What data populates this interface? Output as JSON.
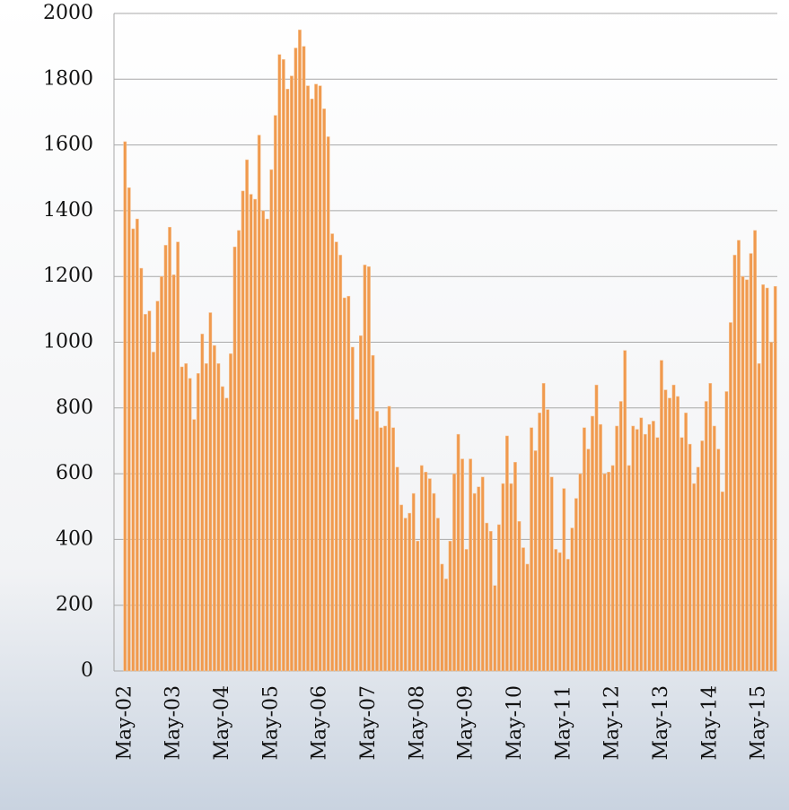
{
  "chart_data": {
    "type": "bar",
    "categories": [
      "May-02",
      null,
      null,
      null,
      null,
      null,
      null,
      null,
      null,
      null,
      null,
      null,
      "May-03",
      null,
      null,
      null,
      null,
      null,
      null,
      null,
      null,
      null,
      null,
      null,
      "May-04",
      null,
      null,
      null,
      null,
      null,
      null,
      null,
      null,
      null,
      null,
      null,
      "May-05",
      null,
      null,
      null,
      null,
      null,
      null,
      null,
      null,
      null,
      null,
      null,
      "May-06",
      null,
      null,
      null,
      null,
      null,
      null,
      null,
      null,
      null,
      null,
      null,
      "May-07",
      null,
      null,
      null,
      null,
      null,
      null,
      null,
      null,
      null,
      null,
      null,
      "May-08",
      null,
      null,
      null,
      null,
      null,
      null,
      null,
      null,
      null,
      null,
      null,
      "May-09",
      null,
      null,
      null,
      null,
      null,
      null,
      null,
      null,
      null,
      null,
      null,
      "May-10",
      null,
      null,
      null,
      null,
      null,
      null,
      null,
      null,
      null,
      null,
      null,
      "May-11",
      null,
      null,
      null,
      null,
      null,
      null,
      null,
      null,
      null,
      null,
      null,
      "May-12",
      null,
      null,
      null,
      null,
      null,
      null,
      null,
      null,
      null,
      null,
      null,
      "May-13",
      null,
      null,
      null,
      null,
      null,
      null,
      null,
      null,
      null,
      null,
      null,
      "May-14",
      null,
      null,
      null,
      null,
      null,
      null,
      null,
      null,
      null,
      null,
      null,
      "May-15",
      null,
      null,
      null,
      null
    ],
    "values": [
      1610,
      1470,
      1345,
      1375,
      1225,
      1085,
      1095,
      970,
      1125,
      1200,
      1295,
      1350,
      1205,
      1305,
      925,
      935,
      890,
      765,
      905,
      1025,
      935,
      1090,
      990,
      935,
      865,
      830,
      965,
      1290,
      1340,
      1460,
      1555,
      1450,
      1435,
      1630,
      1400,
      1375,
      1525,
      1690,
      1875,
      1860,
      1770,
      1810,
      1895,
      1950,
      1900,
      1780,
      1740,
      1785,
      1780,
      1710,
      1625,
      1330,
      1305,
      1265,
      1135,
      1140,
      985,
      765,
      1020,
      1235,
      1230,
      960,
      790,
      740,
      745,
      805,
      740,
      620,
      505,
      465,
      480,
      540,
      395,
      625,
      605,
      585,
      540,
      465,
      325,
      280,
      395,
      600,
      720,
      645,
      370,
      645,
      540,
      560,
      590,
      450,
      425,
      260,
      445,
      570,
      715,
      570,
      635,
      455,
      375,
      325,
      740,
      670,
      785,
      875,
      795,
      590,
      370,
      360,
      555,
      340,
      435,
      525,
      600,
      740,
      675,
      775,
      870,
      750,
      600,
      605,
      625,
      745,
      820,
      975,
      625,
      745,
      735,
      770,
      720,
      750,
      760,
      710,
      945,
      855,
      830,
      870,
      835,
      710,
      785,
      690,
      570,
      620,
      700,
      820,
      875,
      745,
      675,
      545,
      850,
      1060,
      1265,
      1310,
      1200,
      1190,
      1270,
      1340,
      935,
      1175,
      1165,
      1000,
      1170
    ],
    "color": "#f09a4e",
    "ylim": [
      0,
      2000
    ],
    "yticks": [
      0,
      200,
      400,
      600,
      800,
      1000,
      1200,
      1400,
      1600,
      1800,
      2000
    ],
    "grid": true
  }
}
